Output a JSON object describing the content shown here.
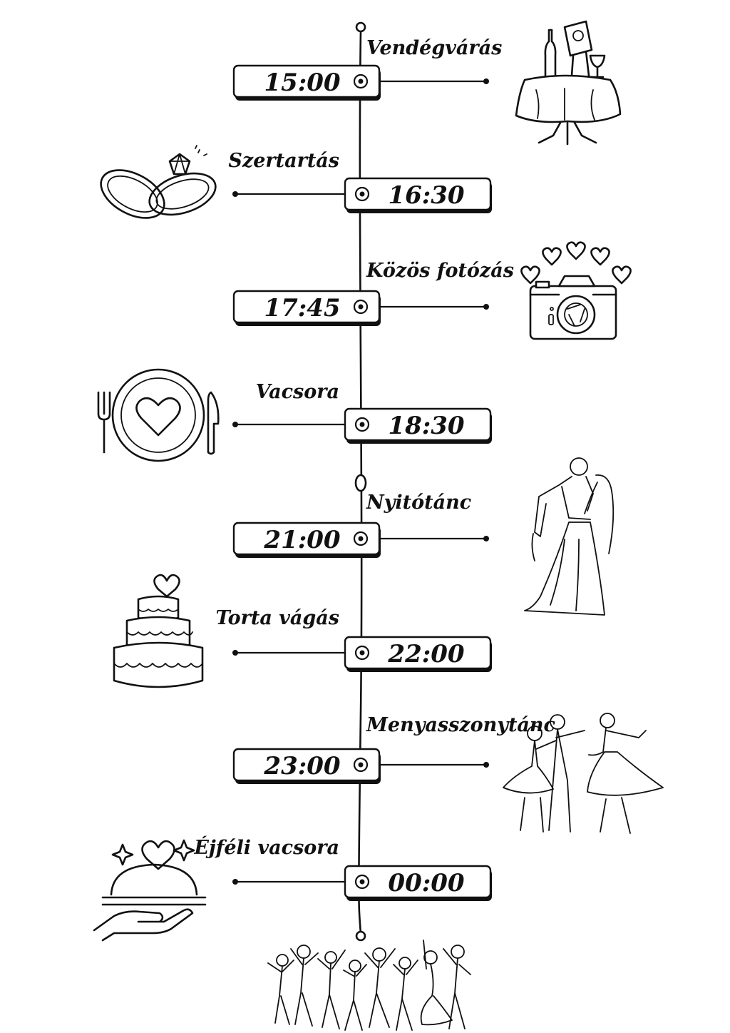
{
  "timeline": {
    "events": [
      {
        "time": "15:00",
        "label": "Vendégvárás",
        "side": "right",
        "icon": "banquet-table-icon"
      },
      {
        "time": "16:30",
        "label": "Szertartás",
        "side": "left",
        "icon": "wedding-rings-icon"
      },
      {
        "time": "17:45",
        "label": "Közös fotózás",
        "side": "right",
        "icon": "camera-hearts-icon"
      },
      {
        "time": "18:30",
        "label": "Vacsora",
        "side": "left",
        "icon": "plate-cutlery-icon"
      },
      {
        "time": "21:00",
        "label": "Nyitótánc",
        "side": "right",
        "icon": "couple-dance-icon"
      },
      {
        "time": "22:00",
        "label": "Torta vágás",
        "side": "left",
        "icon": "wedding-cake-icon"
      },
      {
        "time": "23:00",
        "label": "Menyasszonytánc",
        "side": "right",
        "icon": "bride-dance-icon"
      },
      {
        "time": "00:00",
        "label": "Éjféli vacsora",
        "side": "left",
        "icon": "serving-cloche-icon"
      }
    ],
    "closing_icon": "party-crowd-icon",
    "ink_color": "#111111"
  }
}
